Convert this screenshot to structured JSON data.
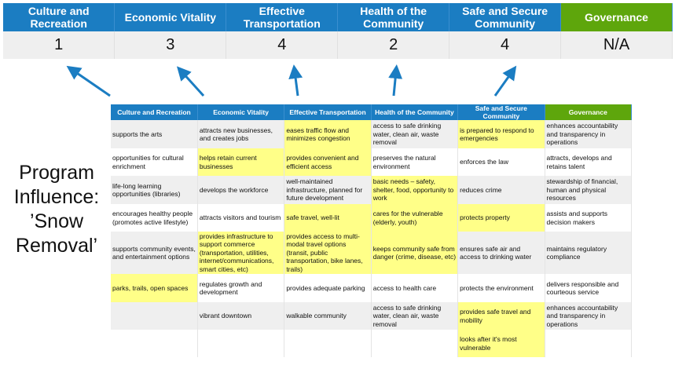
{
  "colors": {
    "header_blue": "#1b7dc2",
    "governance_green": "#5ea60c",
    "highlight": "#ffff88",
    "arrow": "#1b7dc2"
  },
  "summary": {
    "columns": [
      "Culture and Recreation",
      "Economic Vitality",
      "Effective Transportation",
      "Health of the Community",
      "Safe and Secure Community",
      "Governance"
    ],
    "scores": [
      "1",
      "3",
      "4",
      "2",
      "4",
      "N/A"
    ]
  },
  "program_label": "Program Influence: ’Snow Removal’",
  "grid": {
    "columns": [
      "Culture and Recreation",
      "Economic Vitality",
      "Effective Transportation",
      "Health of the Community",
      "Safe and Secure Community",
      "Governance"
    ],
    "rows": [
      [
        {
          "t": "supports the arts"
        },
        {
          "t": "attracts new businesses, and creates jobs"
        },
        {
          "t": "eases traffic flow and minimizes congestion",
          "hl": true
        },
        {
          "t": "access to safe drinking water, clean air, waste removal"
        },
        {
          "t": "is prepared to respond to emergencies",
          "hl": true
        },
        {
          "t": "enhances accountability and transparency in operations"
        }
      ],
      [
        {
          "t": "opportunities for cultural enrichment"
        },
        {
          "t": "helps retain current businesses",
          "hl": true
        },
        {
          "t": "provides convenient and efficient access",
          "hl": true
        },
        {
          "t": "preserves the natural environment"
        },
        {
          "t": "enforces the law"
        },
        {
          "t": "attracts, develops and retains talent"
        }
      ],
      [
        {
          "t": "life-long learning opportunities (libraries)"
        },
        {
          "t": "develops the workforce"
        },
        {
          "t": "well-maintained infrastructure, planned for future development"
        },
        {
          "t": "basic needs – safety, shelter, food, opportunity to work",
          "hl": true
        },
        {
          "t": "reduces crime"
        },
        {
          "t": "stewardship of financial, human and physical resources"
        }
      ],
      [
        {
          "t": "encourages healthy people (promotes active lifestyle)"
        },
        {
          "t": "attracts visitors and tourism"
        },
        {
          "t": "safe travel, well-lit",
          "hl": true
        },
        {
          "t": "cares for the vulnerable (elderly, youth)",
          "hl": true
        },
        {
          "t": "protects property",
          "hl": true
        },
        {
          "t": "assists and supports decision makers"
        }
      ],
      [
        {
          "t": "supports community events, and entertainment options"
        },
        {
          "t": "provides infrastructure to support commerce (transportation, utilities, internet/communications, smart cities, etc)",
          "hl": true
        },
        {
          "t": "provides access to multi-modal travel options (transit, public transportation, bike lanes, trails)",
          "hl": true
        },
        {
          "t": "keeps community safe from danger (crime, disease, etc)",
          "hl": true
        },
        {
          "t": "ensures safe air and access to drinking water"
        },
        {
          "t": "maintains regulatory compliance"
        }
      ],
      [
        {
          "t": "parks, trails, open spaces",
          "hl": true
        },
        {
          "t": "regulates growth and development"
        },
        {
          "t": "provides adequate parking"
        },
        {
          "t": "access to health care"
        },
        {
          "t": "protects the environment"
        },
        {
          "t": "delivers responsible and courteous service"
        }
      ],
      [
        {
          "t": ""
        },
        {
          "t": "vibrant downtown"
        },
        {
          "t": "walkable community"
        },
        {
          "t": "access to safe drinking water, clean air, waste removal"
        },
        {
          "t": "provides safe travel and mobility",
          "hl": true
        },
        {
          "t": "enhances accountability and transparency in operations"
        }
      ],
      [
        {
          "t": ""
        },
        {
          "t": ""
        },
        {
          "t": ""
        },
        {
          "t": ""
        },
        {
          "t": "looks after it's most vulnerable",
          "hl": true
        },
        {
          "t": ""
        }
      ]
    ]
  }
}
